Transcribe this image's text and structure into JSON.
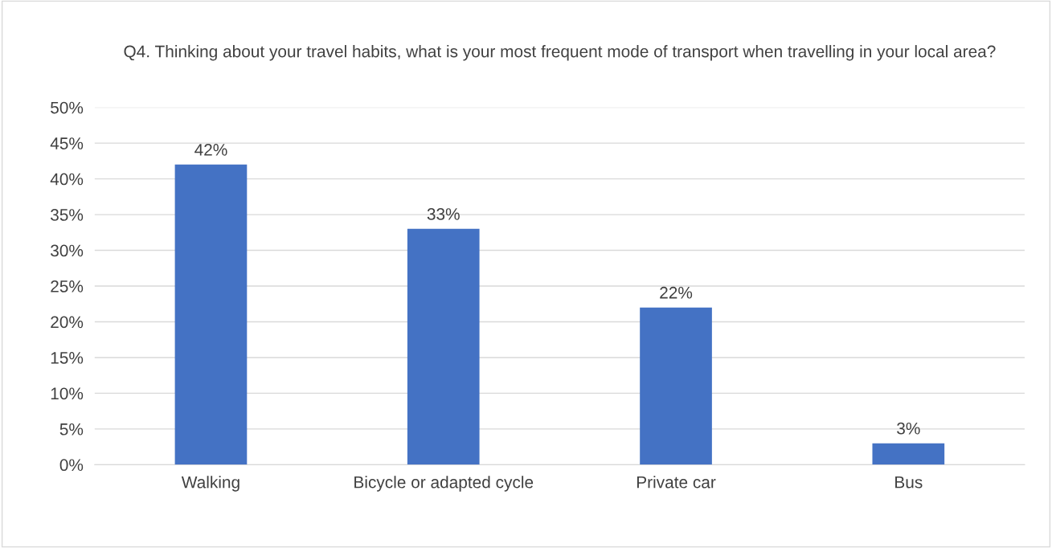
{
  "chart_data": {
    "type": "bar",
    "title": "Q4. Thinking about your travel habits, what is your most frequent mode of transport when travelling in your local area?",
    "categories": [
      "Walking",
      "Bicycle or adapted cycle",
      "Private car",
      "Bus"
    ],
    "values": [
      42,
      33,
      22,
      3
    ],
    "value_labels": [
      "42%",
      "33%",
      "22%",
      "3%"
    ],
    "color": "#4472c4",
    "ylim": [
      0,
      50
    ],
    "yticks": [
      {
        "value": 0,
        "label": "0%"
      },
      {
        "value": 5,
        "label": "5%"
      },
      {
        "value": 10,
        "label": "10%"
      },
      {
        "value": 15,
        "label": "15%"
      },
      {
        "value": 20,
        "label": "20%"
      },
      {
        "value": 25,
        "label": "25%"
      },
      {
        "value": 30,
        "label": "30%"
      },
      {
        "value": 35,
        "label": "35%"
      },
      {
        "value": 40,
        "label": "40%"
      },
      {
        "value": 45,
        "label": "45%"
      },
      {
        "value": 50,
        "label": "50%"
      }
    ],
    "grid": "y"
  }
}
